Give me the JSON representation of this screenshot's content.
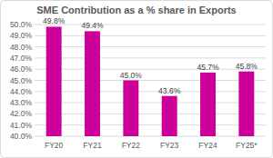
{
  "chart_data": {
    "type": "bar",
    "title": "SME Contribution as a % share in Exports",
    "categories": [
      "FY20",
      "FY21",
      "FY22",
      "FY23",
      "FY24",
      "FY25*"
    ],
    "values": [
      49.8,
      49.4,
      45.0,
      43.6,
      45.7,
      45.8
    ],
    "value_labels": [
      "49.8%",
      "49.4%",
      "45.0%",
      "43.6%",
      "45.7%",
      "45.8%"
    ],
    "color": "#cc0099",
    "ylim": [
      40,
      50
    ],
    "yticks": [
      {
        "value": 40,
        "label": "40.0%"
      },
      {
        "value": 41,
        "label": "41.0%"
      },
      {
        "value": 42,
        "label": "42.0%"
      },
      {
        "value": 43,
        "label": "43.0%"
      },
      {
        "value": 44,
        "label": "44.0%"
      },
      {
        "value": 45,
        "label": "45.0%"
      },
      {
        "value": 46,
        "label": "46.0%"
      },
      {
        "value": 47,
        "label": "47.0%"
      },
      {
        "value": 48,
        "label": "48.0%"
      },
      {
        "value": 49,
        "label": "49.0%"
      },
      {
        "value": 50,
        "label": "50.0%"
      }
    ],
    "grid": true,
    "data_labels": true
  }
}
